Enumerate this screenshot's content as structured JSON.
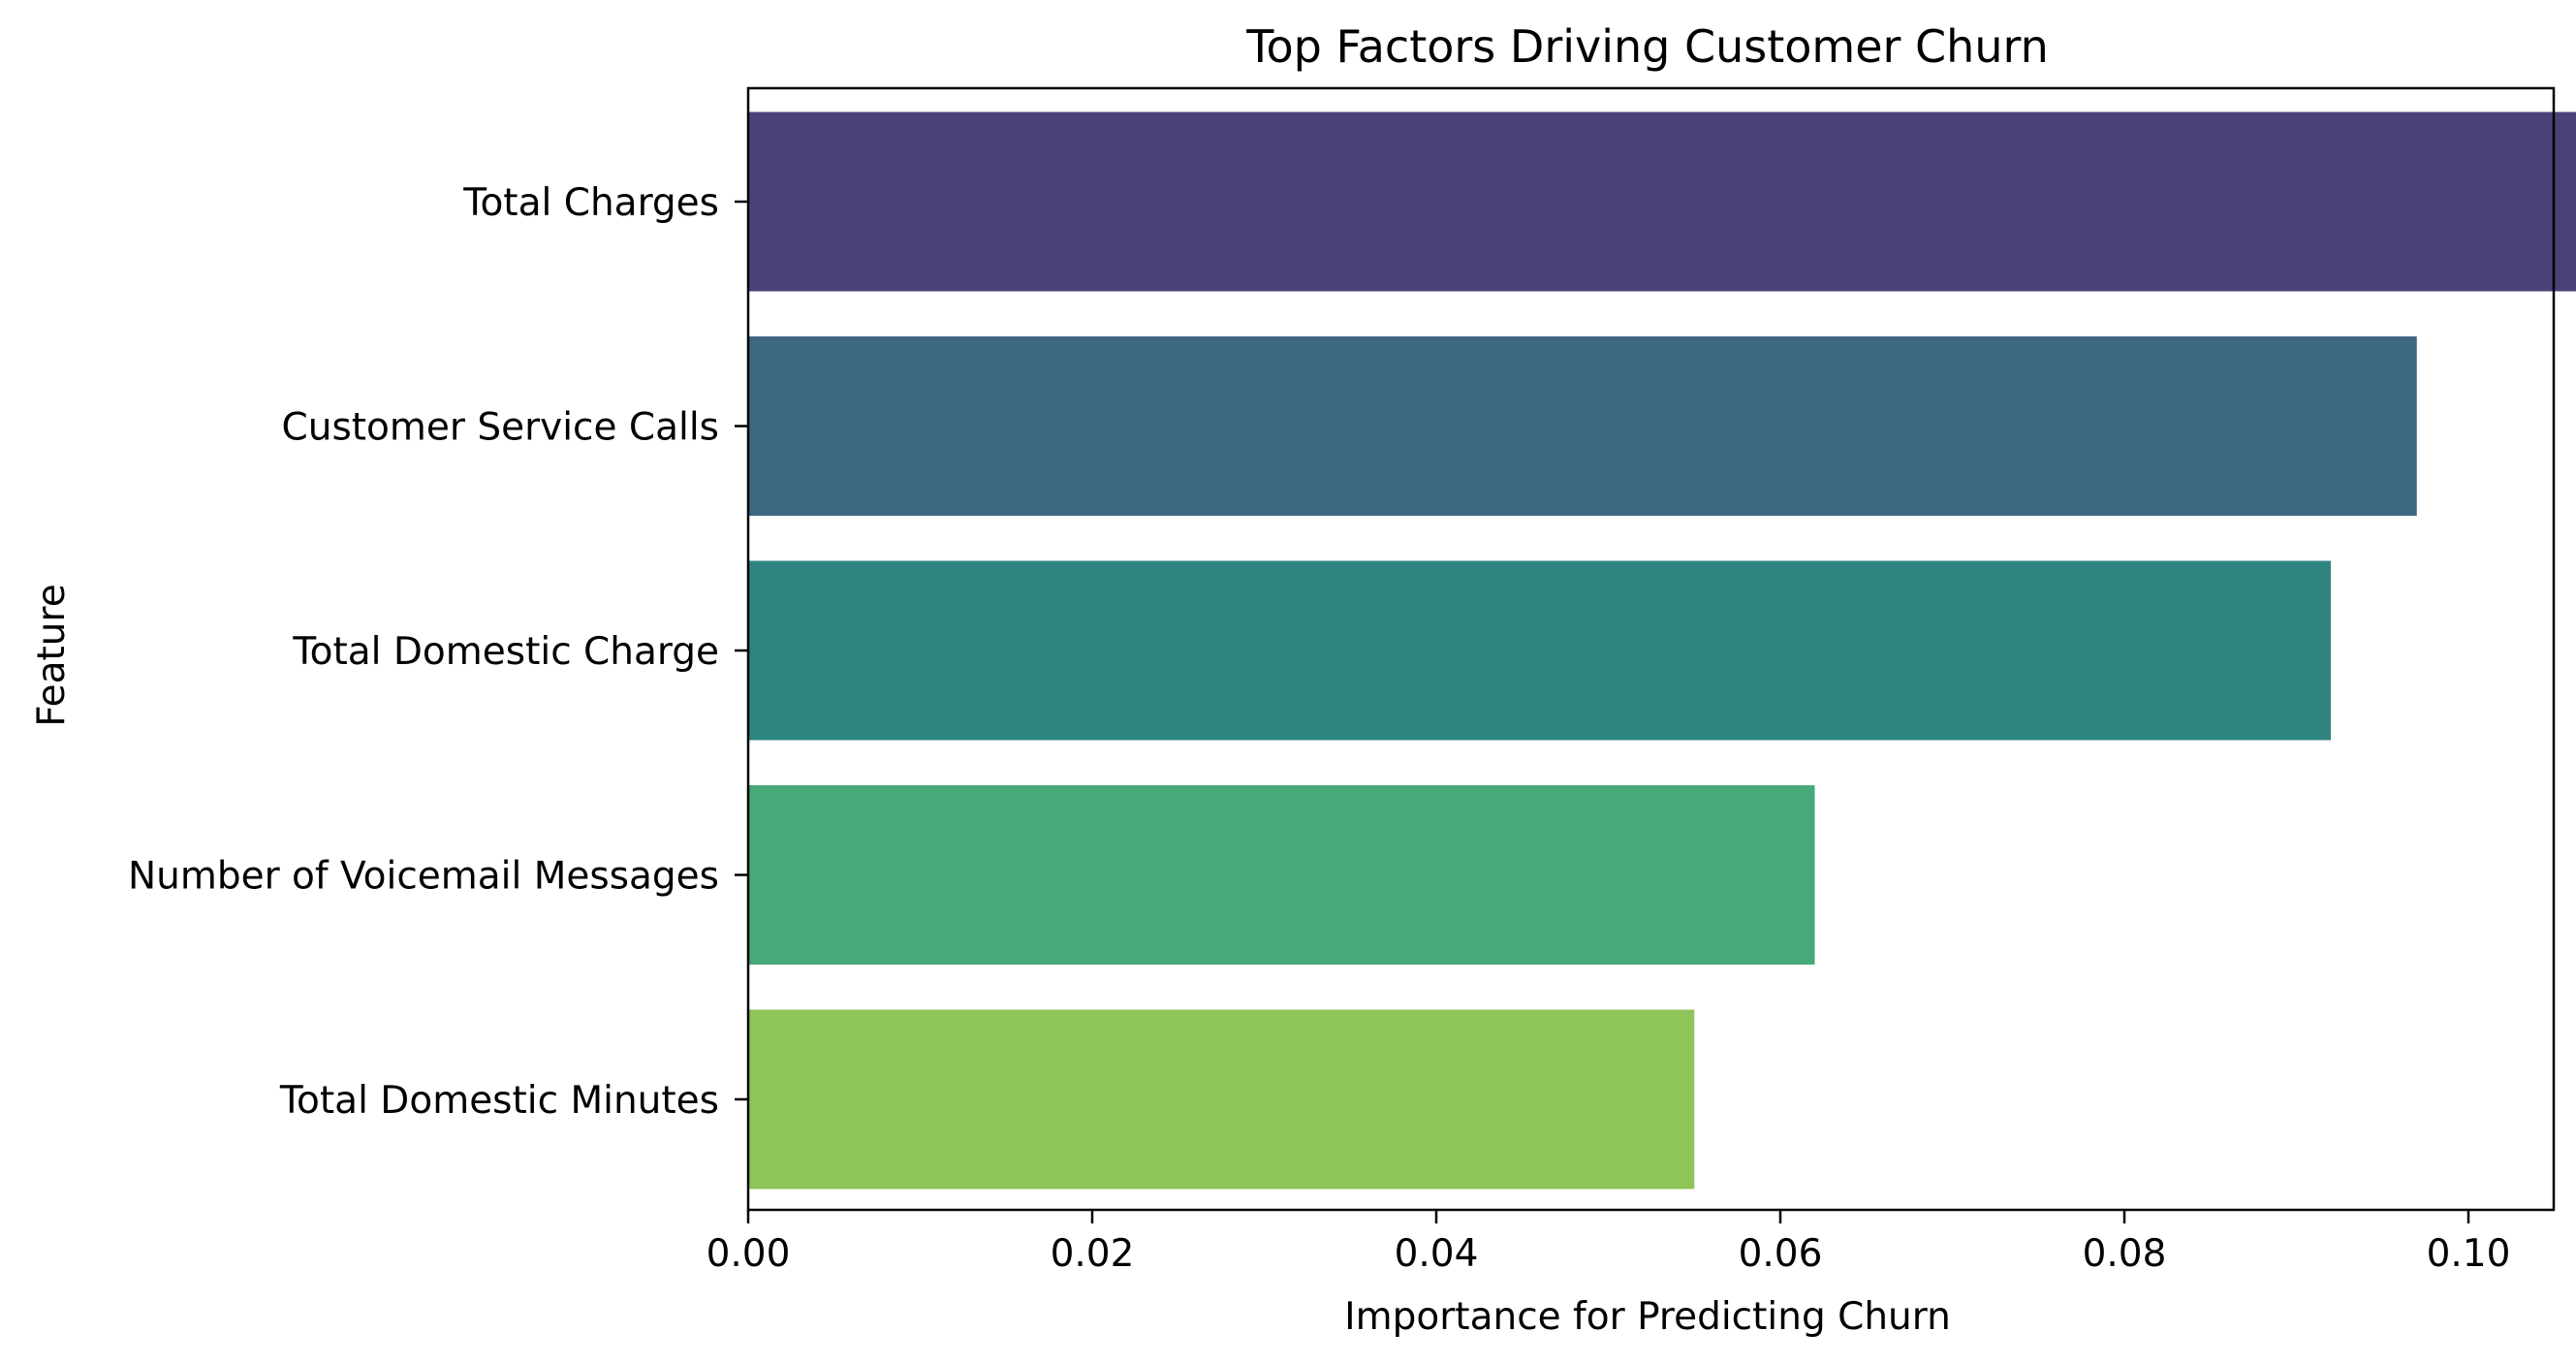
{
  "chart_data": {
    "type": "bar",
    "orientation": "horizontal",
    "title": "Top Factors Driving Customer Churn",
    "xlabel": "Importance for Predicting Churn",
    "ylabel": "Feature",
    "categories": [
      "Total Charges",
      "Customer Service Calls",
      "Total Domestic Charge",
      "Number of Voicemail Messages",
      "Total Domestic Minutes"
    ],
    "values": [
      0.114,
      0.097,
      0.092,
      0.062,
      0.055
    ],
    "colors": [
      "#4b4078",
      "#3e6781",
      "#2e8580",
      "#47a878",
      "#8ec458"
    ],
    "xlim": [
      0,
      0.12
    ],
    "xticks": [
      0.0,
      0.02,
      0.04,
      0.06,
      0.08,
      0.1
    ],
    "xtick_labels": [
      "0.00",
      "0.02",
      "0.04",
      "0.06",
      "0.08",
      "0.10"
    ],
    "grid": false,
    "legend": "none"
  }
}
